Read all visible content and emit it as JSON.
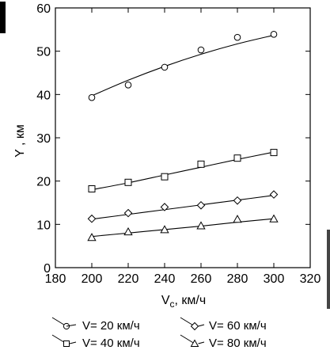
{
  "chart_data": {
    "type": "scatter",
    "xlabel_main": "V",
    "xlabel_sub": "c",
    "xlabel_unit": ", км/ч",
    "ylabel": "Y , км",
    "xlim": [
      180,
      320
    ],
    "ylim": [
      0,
      60
    ],
    "x_ticks": [
      180,
      200,
      220,
      240,
      260,
      280,
      300,
      320
    ],
    "y_ticks": [
      0,
      10,
      20,
      30,
      40,
      50,
      60
    ],
    "grid": false,
    "legend_position": "bottom",
    "x": [
      200,
      220,
      240,
      260,
      280,
      300
    ],
    "series": [
      {
        "name": "V= 20 км/ч",
        "marker": "circle",
        "values": [
          39.3,
          42.2,
          46.3,
          50.3,
          53.2,
          53.9
        ]
      },
      {
        "name": "V= 40 км/ч",
        "marker": "square",
        "values": [
          18.2,
          19.7,
          21.0,
          23.9,
          25.3,
          26.6
        ]
      },
      {
        "name": "V= 60 км/ч",
        "marker": "diamond",
        "values": [
          11.3,
          12.6,
          14.0,
          14.4,
          15.5,
          16.9
        ]
      },
      {
        "name": "V= 80 км/ч",
        "marker": "triangle",
        "values": [
          7.0,
          8.3,
          8.8,
          9.7,
          11.2,
          11.3
        ]
      }
    ],
    "fits": [
      {
        "values": [
          39.7,
          43.3,
          46.5,
          49.3,
          51.7,
          53.7
        ]
      },
      {
        "values": [
          18.0,
          19.6,
          21.4,
          23.2,
          25.0,
          26.7
        ]
      },
      {
        "values": [
          11.2,
          12.3,
          13.4,
          14.5,
          15.6,
          16.7
        ]
      },
      {
        "values": [
          7.2,
          8.0,
          8.8,
          9.6,
          10.5,
          11.3
        ]
      }
    ]
  }
}
